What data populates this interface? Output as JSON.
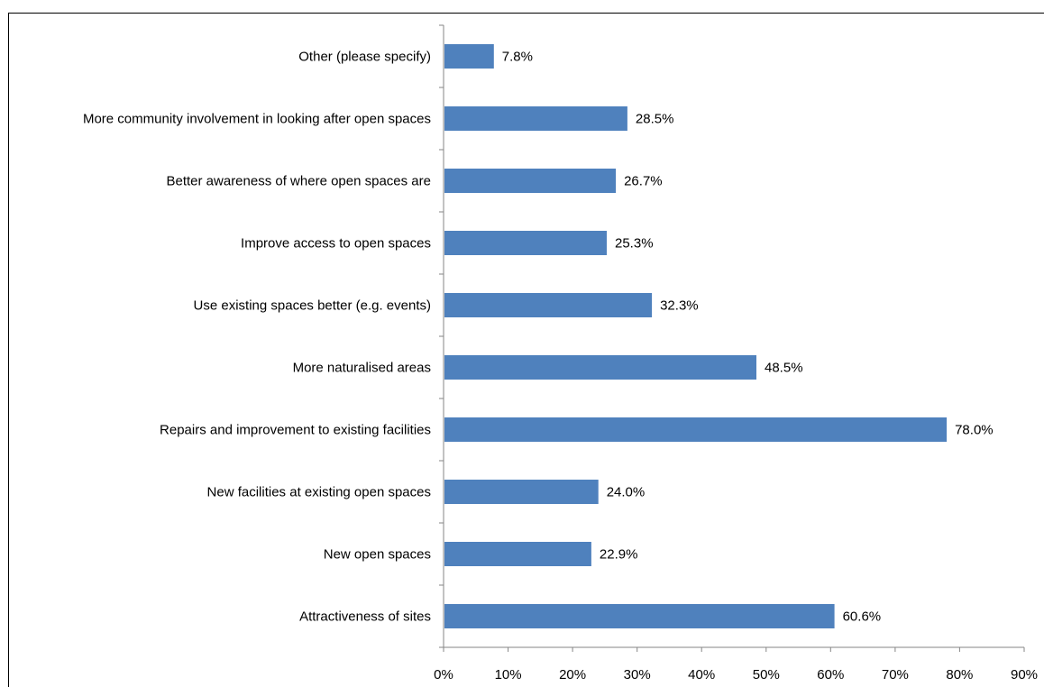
{
  "chart_data": {
    "type": "bar",
    "orientation": "horizontal",
    "categories": [
      "Other (please specify)",
      "More community involvement in looking after open spaces",
      "Better awareness of where open spaces are",
      "Improve access to open spaces",
      "Use existing spaces better (e.g. events)",
      "More naturalised areas",
      "Repairs and improvement to existing facilities",
      "New facilities at existing open spaces",
      "New open spaces",
      "Attractiveness of sites"
    ],
    "values": [
      7.8,
      28.5,
      26.7,
      25.3,
      32.3,
      48.5,
      78.0,
      24.0,
      22.9,
      60.6
    ],
    "value_labels": [
      "7.8%",
      "28.5%",
      "26.7%",
      "25.3%",
      "32.3%",
      "48.5%",
      "78.0%",
      "24.0%",
      "22.9%",
      "60.6%"
    ],
    "xlim": [
      0,
      90
    ],
    "xticks": [
      0,
      10,
      20,
      30,
      40,
      50,
      60,
      70,
      80,
      90
    ],
    "xtick_labels": [
      "0%",
      "10%",
      "20%",
      "30%",
      "40%",
      "50%",
      "60%",
      "70%",
      "80%",
      "90%"
    ],
    "bar_color": "#4F81BD",
    "grid": false,
    "legend": "none"
  }
}
